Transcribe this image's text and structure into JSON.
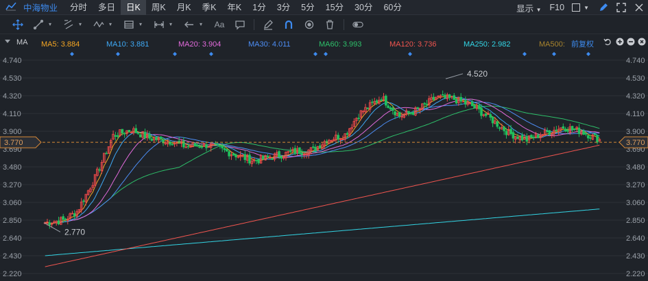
{
  "header": {
    "stock_name": "中海物业",
    "periods": [
      "分时",
      "多日",
      "日K",
      "周K",
      "月K",
      "季K",
      "年K",
      "1分",
      "3分",
      "5分",
      "15分",
      "30分",
      "60分"
    ],
    "active_period": "日K",
    "display_label": "显示",
    "f10_label": "F10"
  },
  "toolbar": {
    "tools": [
      "crosshair-icon",
      "line-icon",
      "channel-icon",
      "wave-icon",
      "fib-icon",
      "measure-icon",
      "arrow-icon",
      "text-icon",
      "comment-icon",
      "pencil-icon",
      "magnet-icon",
      "eye-icon",
      "trash-icon",
      "toggle-icon"
    ],
    "text_tool_label": "Aa"
  },
  "legend": {
    "title": "MA",
    "items": [
      {
        "label": "MA5: 3.884",
        "color": "#f5a623"
      },
      {
        "label": "MA10: 3.881",
        "color": "#3fa9f5"
      },
      {
        "label": "MA20: 3.904",
        "color": "#e36bdc"
      },
      {
        "label": "MA30: 4.011",
        "color": "#4d8ef5"
      },
      {
        "label": "MA60: 3.993",
        "color": "#2ec06a"
      },
      {
        "label": "MA120: 3.736",
        "color": "#f0554f"
      },
      {
        "label": "MA250: 2.982",
        "color": "#33d6e6"
      },
      {
        "label": "MA500:",
        "color": "#a8842d"
      }
    ],
    "adjust_label": "前复权"
  },
  "colors": {
    "up": "#f04a4a",
    "down": "#1fc15e",
    "grid": "#2c3138",
    "current_price_bg": "#2b2f36"
  },
  "chart_data": {
    "type": "candlestick",
    "y_ticks": [
      "4.740",
      "4.530",
      "4.320",
      "4.110",
      "3.900",
      "3.690",
      "3.480",
      "3.270",
      "3.060",
      "2.850",
      "2.640",
      "2.430",
      "2.220"
    ],
    "ylim": [
      2.22,
      4.74
    ],
    "current_price": "3.770",
    "high_label": "4.520",
    "low_label": "2.770",
    "high": 4.52,
    "low": 2.77
  }
}
